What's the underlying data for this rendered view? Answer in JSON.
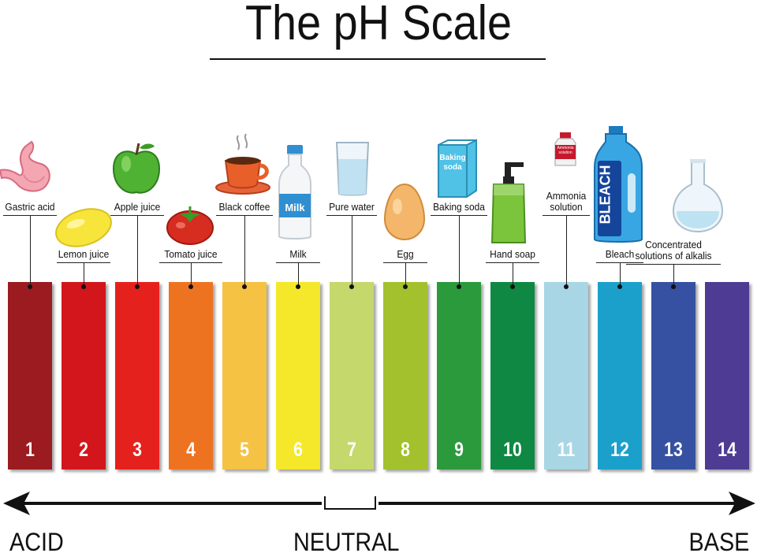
{
  "title": "The pH Scale",
  "scale": [
    {
      "ph": "1",
      "color": "#9b1b20",
      "label": "Gastric acid",
      "icon": "stomach-icon"
    },
    {
      "ph": "2",
      "color": "#d2161c",
      "label": "Lemon juice",
      "icon": "lemon-icon"
    },
    {
      "ph": "3",
      "color": "#e5211e",
      "label": "Apple juice",
      "icon": "apple-icon"
    },
    {
      "ph": "4",
      "color": "#ee7320",
      "label": "Tomato juice",
      "icon": "tomato-icon"
    },
    {
      "ph": "5",
      "color": "#f6c244",
      "label": "Black coffee",
      "icon": "coffee-cup-icon"
    },
    {
      "ph": "6",
      "color": "#f5e82a",
      "label": "Milk",
      "icon": "milk-bottle-icon"
    },
    {
      "ph": "7",
      "color": "#c4d86c",
      "label": "Pure water",
      "icon": "water-glass-icon"
    },
    {
      "ph": "8",
      "color": "#a2c12c",
      "label": "Egg",
      "icon": "egg-icon"
    },
    {
      "ph": "9",
      "color": "#2a9a3c",
      "label": "Baking soda",
      "icon": "baking-soda-box-icon"
    },
    {
      "ph": "10",
      "color": "#0f8844",
      "label": "Hand soap",
      "icon": "soap-dispenser-icon"
    },
    {
      "ph": "11",
      "color": "#a8d6e4",
      "label": "Ammonia solution",
      "label_lines": [
        "Ammonia",
        "solution"
      ],
      "icon": "ammonia-bottle-icon"
    },
    {
      "ph": "12",
      "color": "#1ba0cb",
      "label": "Bleach",
      "icon": "bleach-bottle-icon"
    },
    {
      "ph": "13",
      "color": "#3650a2",
      "label": "Concentrated solutions of alkalis",
      "label_lines": [
        "Concentrated",
        "solutions of alkalis"
      ],
      "icon": "flask-icon"
    },
    {
      "ph": "14",
      "color": "#4e3c94",
      "label": "",
      "icon": ""
    }
  ],
  "icon_text": {
    "milk": "Milk",
    "baking_soda": "Baking soda",
    "ammonia": "Ammonia solution",
    "bleach": "BLEACH"
  },
  "axis": {
    "left": "ACID",
    "center": "NEUTRAL",
    "right": "BASE"
  }
}
